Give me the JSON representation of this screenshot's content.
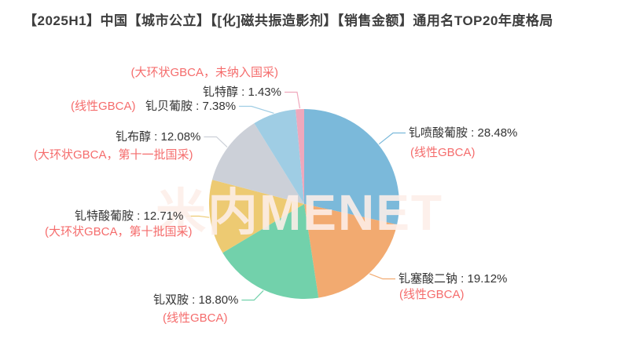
{
  "watermark": "米内MENET",
  "colors": {
    "background": "#ffffff",
    "title_text": "#3d3d3d",
    "label_text": "#333333",
    "class_note_text": "#f56c6c",
    "watermark_text": "rgba(253,238,232,0.88)"
  },
  "chart_data": {
    "type": "pie",
    "title": "【2025H1】中国【城市公立】【[化]磁共振造影剂】【销售金额】通用名TOP20年度格局",
    "unit": "%",
    "label_separator": " : ",
    "direction": "clockwise",
    "start_angle": "12-o'clock",
    "legend": false,
    "slices": [
      {
        "name": "钆喷酸葡胺",
        "value": 28.48,
        "class_note": "(线性GBCA)",
        "color": "#7bb9da"
      },
      {
        "name": "钆塞酸二钠",
        "value": 19.12,
        "class_note": "(线性GBCA)",
        "color": "#f2aa70"
      },
      {
        "name": "钆双胺",
        "value": 18.8,
        "class_note": "(线性GBCA)",
        "color": "#72d1ab"
      },
      {
        "name": "钆特酸葡胺",
        "value": 12.71,
        "class_note": "(大环状GBCA，第十批国采)",
        "color": "#edca72"
      },
      {
        "name": "钆布醇",
        "value": 12.08,
        "class_note": "(大环状GBCA，第十一批国采)",
        "color": "#ccd0d8"
      },
      {
        "name": "钆贝葡胺",
        "value": 7.38,
        "class_note": "(线性GBCA)",
        "color": "#9fcde4"
      },
      {
        "name": "钆特醇",
        "value": 1.43,
        "class_note": "(大环状GBCA，未纳入国采)",
        "color": "#efa8bc"
      }
    ]
  }
}
